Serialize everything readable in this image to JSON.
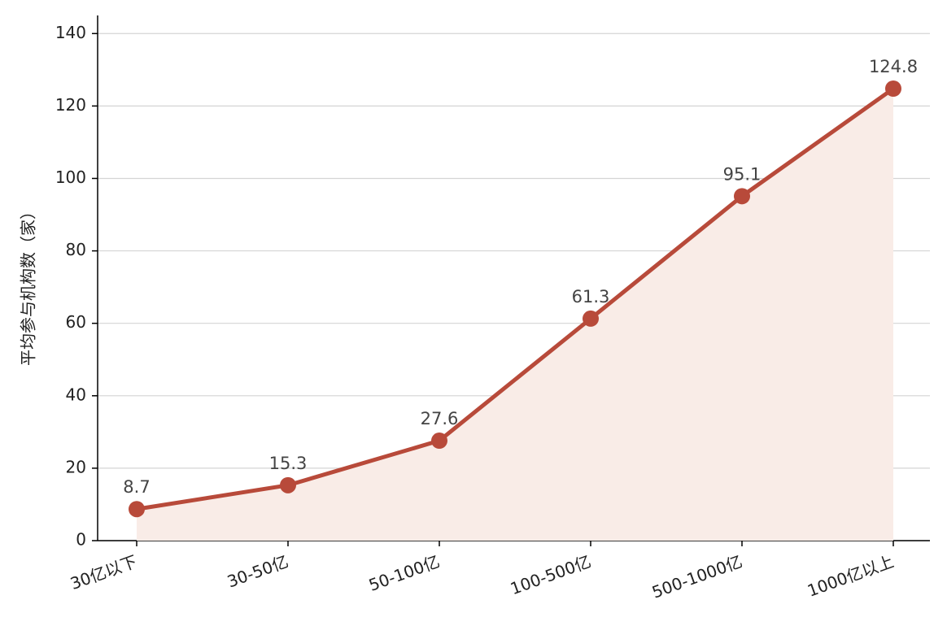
{
  "chart_data": {
    "type": "line",
    "y_label": "平均参与机构数（家）",
    "categories": [
      "30亿以下",
      "30-50亿",
      "50-100亿",
      "100-500亿",
      "500-1000亿",
      "1000亿以上"
    ],
    "series": [
      {
        "color": "#b84a3a",
        "fill": "#f9ece7",
        "values": [
          8.7,
          15.3,
          27.6,
          61.3,
          95.1,
          124.8
        ]
      }
    ],
    "ylim": [
      0,
      145
    ],
    "yticks": [
      0,
      20,
      40,
      60,
      80,
      100,
      120,
      140
    ],
    "grid": true
  }
}
